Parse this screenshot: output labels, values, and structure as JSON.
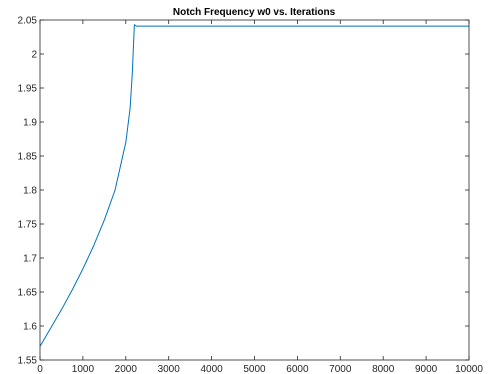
{
  "chart_data": {
    "type": "line",
    "title": "Notch Frequency w0 vs. Iterations",
    "xlabel": "",
    "ylabel": "",
    "xlim": [
      0,
      10000
    ],
    "ylim": [
      1.55,
      2.05
    ],
    "xticks": [
      0,
      1000,
      2000,
      3000,
      4000,
      5000,
      6000,
      7000,
      8000,
      9000,
      10000
    ],
    "yticks": [
      1.55,
      1.6,
      1.65,
      1.7,
      1.75,
      1.8,
      1.85,
      1.9,
      1.95,
      2,
      2.05
    ],
    "xtick_labels": [
      "0",
      "1000",
      "2000",
      "3000",
      "4000",
      "5000",
      "6000",
      "7000",
      "8000",
      "9000",
      "10000"
    ],
    "ytick_labels": [
      "1.55",
      "1.6",
      "1.65",
      "1.7",
      "1.75",
      "1.8",
      "1.85",
      "1.9",
      "1.95",
      "2",
      "2.05"
    ],
    "grid": false,
    "legend": "none",
    "series": [
      {
        "color": "#0072bd",
        "x": [
          0,
          250,
          500,
          750,
          1000,
          1250,
          1500,
          1750,
          2000,
          2100,
          2150,
          2200,
          2250,
          10000
        ],
        "y": [
          1.57,
          1.597,
          1.624,
          1.653,
          1.684,
          1.718,
          1.756,
          1.8,
          1.87,
          1.92,
          1.97,
          2.043,
          2.041,
          2.041
        ]
      }
    ]
  }
}
